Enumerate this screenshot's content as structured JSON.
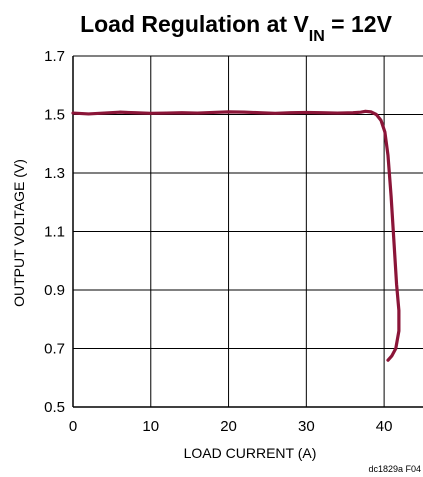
{
  "chart_data": {
    "type": "line",
    "title": {
      "main": "Load Regulation at V",
      "sub": "IN",
      "tail": " = 12V"
    },
    "xlabel": "LOAD CURRENT (A)",
    "ylabel": "OUTPUT VOLTAGE (V)",
    "xlim": [
      0,
      45
    ],
    "ylim": [
      0.5,
      1.7
    ],
    "x_ticks": [
      0,
      10,
      20,
      30,
      40
    ],
    "x_tick_labels": [
      "0",
      "10",
      "20",
      "30",
      "40"
    ],
    "y_ticks": [
      0.5,
      0.7,
      0.9,
      1.1,
      1.3,
      1.5,
      1.7
    ],
    "y_tick_labels": [
      "0.5",
      "0.7",
      "0.9",
      "1.1",
      "1.3",
      "1.5",
      "1.7"
    ],
    "x_grid": [
      0,
      10,
      20,
      30,
      40
    ],
    "y_grid": [
      0.7,
      0.9,
      1.1,
      1.3,
      1.5,
      1.7
    ],
    "grid": true,
    "line_color": "#8b1538",
    "series": [
      {
        "values": [
          [
            0,
            1.505
          ],
          [
            2,
            1.502
          ],
          [
            4,
            1.505
          ],
          [
            6,
            1.508
          ],
          [
            8,
            1.506
          ],
          [
            10,
            1.504
          ],
          [
            12,
            1.505
          ],
          [
            14,
            1.506
          ],
          [
            16,
            1.505
          ],
          [
            18,
            1.507
          ],
          [
            20,
            1.509
          ],
          [
            22,
            1.508
          ],
          [
            24,
            1.506
          ],
          [
            26,
            1.504
          ],
          [
            28,
            1.506
          ],
          [
            30,
            1.507
          ],
          [
            32,
            1.506
          ],
          [
            34,
            1.505
          ],
          [
            36,
            1.506
          ],
          [
            37,
            1.508
          ],
          [
            37.6,
            1.511
          ],
          [
            38.3,
            1.509
          ],
          [
            39,
            1.5
          ],
          [
            39.6,
            1.48
          ],
          [
            40.1,
            1.44
          ],
          [
            40.5,
            1.36
          ],
          [
            40.9,
            1.22
          ],
          [
            41.3,
            1.05
          ],
          [
            41.6,
            0.92
          ],
          [
            41.9,
            0.83
          ],
          [
            41.9,
            0.76
          ],
          [
            41.5,
            0.7
          ],
          [
            41.0,
            0.675
          ],
          [
            40.5,
            0.66
          ]
        ]
      }
    ],
    "figure_code": "dc1829a F04"
  }
}
